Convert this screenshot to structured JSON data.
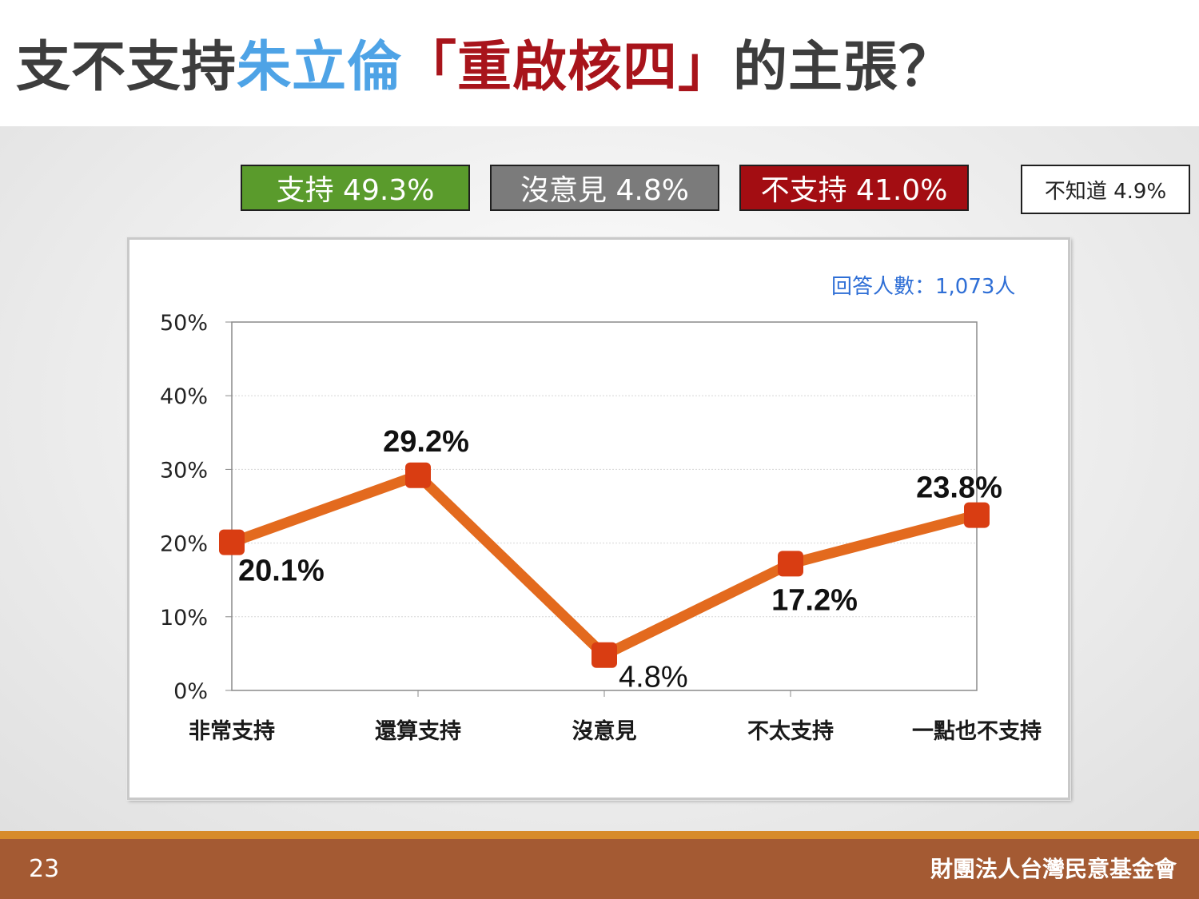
{
  "title": {
    "part1": "支不支持",
    "part2": "朱立倫",
    "part3": "「重啟核四」",
    "part4": "的主張？"
  },
  "summary": {
    "support": "支持 49.3%",
    "neutral": "沒意見 4.8%",
    "oppose": "不支持 41.0%",
    "unknown": "不知道 4.9%"
  },
  "respondents": "回答人數：1,073人",
  "footer": {
    "page_number": "23",
    "organization": "財團法人台灣民意基金會"
  },
  "colors": {
    "line": "#e36a1e",
    "marker": "#d93d12",
    "support": "#5a9b2c",
    "neutral": "#7b7b7b",
    "oppose": "#a30d12",
    "title_blue": "#4ea3e6",
    "title_red": "#a8141b"
  },
  "chart_data": {
    "type": "line",
    "categories": [
      "非常支持",
      "還算支持",
      "沒意見",
      "不太支持",
      "一點也不支持"
    ],
    "values": [
      20.1,
      29.2,
      4.8,
      17.2,
      23.8
    ],
    "data_labels": [
      "20.1%",
      "29.2%",
      "4.8%",
      "17.2%",
      "23.8%"
    ],
    "y_ticks": [
      "0%",
      "10%",
      "20%",
      "30%",
      "40%",
      "50%"
    ],
    "ylim": [
      0,
      50
    ],
    "grid": true,
    "title": "",
    "xlabel": "",
    "ylabel": ""
  }
}
